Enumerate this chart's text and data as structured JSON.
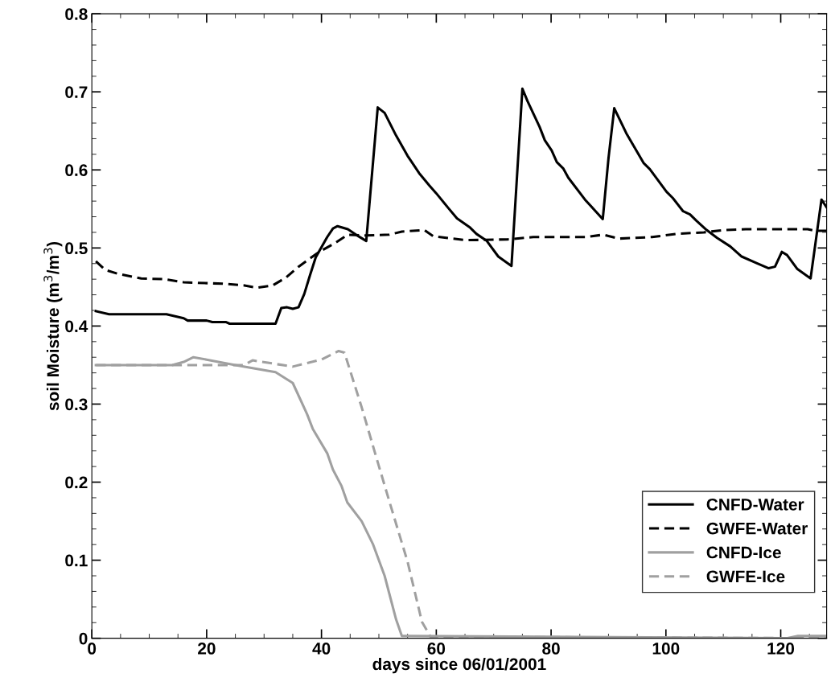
{
  "chart_data": {
    "type": "line",
    "xlabel": "days since 06/01/2001",
    "ylabel": "soil Moisture (m$^{3}$/m$^{3}$)",
    "xlim": [
      0,
      128
    ],
    "xticks": [
      0,
      20,
      40,
      60,
      80,
      100,
      120
    ],
    "ylim": [
      0,
      0.8
    ],
    "yticks": [
      0,
      0.1,
      0.2,
      0.3,
      0.4,
      0.5,
      0.6,
      0.7,
      0.8
    ],
    "grid": false,
    "legend": "bottom right",
    "marker": "none",
    "series": [
      {
        "name": "CNFD-Water",
        "color": "#000000",
        "line_style": "solid",
        "x": [
          0.7,
          3,
          13,
          16,
          16.7,
          20,
          21,
          23.4,
          24,
          32,
          33,
          34,
          35,
          36,
          37,
          38,
          39,
          41,
          42,
          42.8,
          44.6,
          46,
          47.8,
          49.8,
          51,
          53,
          55,
          57,
          58.8,
          60,
          62,
          63.6,
          65.9,
          67,
          68.8,
          70.8,
          73.1,
          75,
          75.9,
          78,
          78.9,
          80.1,
          81,
          82.1,
          83,
          85.9,
          89,
          90,
          91,
          93.1,
          96.1,
          97.2,
          100.1,
          101.2,
          103,
          104.2,
          105.3,
          107.1,
          108.9,
          111.2,
          113.2,
          115.7,
          117.9,
          119,
          120.2,
          121.1,
          122.9,
          125.2,
          127.1,
          128
        ],
        "values": [
          0.419,
          0.415,
          0.415,
          0.41,
          0.407,
          0.407,
          0.405,
          0.405,
          0.403,
          0.403,
          0.423,
          0.424,
          0.422,
          0.424,
          0.441,
          0.465,
          0.488,
          0.514,
          0.525,
          0.528,
          0.524,
          0.517,
          0.509,
          0.68,
          0.673,
          0.644,
          0.618,
          0.596,
          0.58,
          0.57,
          0.552,
          0.538,
          0.526,
          0.518,
          0.509,
          0.489,
          0.477,
          0.704,
          0.688,
          0.655,
          0.638,
          0.625,
          0.61,
          0.602,
          0.59,
          0.562,
          0.537,
          0.615,
          0.679,
          0.647,
          0.609,
          0.601,
          0.572,
          0.564,
          0.547,
          0.543,
          0.535,
          0.523,
          0.513,
          0.502,
          0.489,
          0.481,
          0.474,
          0.476,
          0.495,
          0.491,
          0.473,
          0.461,
          0.562,
          0.552
        ]
      },
      {
        "name": "GWFE-Water",
        "color": "#000000",
        "line_style": "dashed",
        "x": [
          0.7,
          2.3,
          4.5,
          8.6,
          12.6,
          16,
          23.4,
          26.6,
          28.8,
          31.5,
          33.8,
          36,
          39.6,
          42.3,
          44.6,
          47.7,
          51.8,
          54,
          57.9,
          59.5,
          65.2,
          72.4,
          76.9,
          85.9,
          89.1,
          91.8,
          97.6,
          101.7,
          106.6,
          110.2,
          113.9,
          124.7,
          126,
          128
        ],
        "values": [
          0.483,
          0.472,
          0.467,
          0.461,
          0.46,
          0.456,
          0.454,
          0.452,
          0.449,
          0.452,
          0.462,
          0.476,
          0.495,
          0.506,
          0.517,
          0.516,
          0.517,
          0.521,
          0.523,
          0.515,
          0.51,
          0.511,
          0.514,
          0.514,
          0.517,
          0.512,
          0.514,
          0.518,
          0.52,
          0.523,
          0.524,
          0.524,
          0.522,
          0.522
        ]
      },
      {
        "name": "CNFD-Ice",
        "color": "#a0a0a0",
        "line_style": "solid",
        "x": [
          0.7,
          14,
          16,
          17.7,
          20,
          25,
          32,
          35,
          37.5,
          38.5,
          41,
          42,
          43.5,
          44.5,
          47,
          49,
          51,
          53,
          54,
          121,
          123,
          128
        ],
        "values": [
          0.35,
          0.35,
          0.354,
          0.36,
          0.357,
          0.35,
          0.341,
          0.327,
          0.287,
          0.268,
          0.237,
          0.216,
          0.195,
          0.174,
          0.15,
          0.12,
          0.08,
          0.024,
          0.003,
          0,
          0.003,
          0.003
        ]
      },
      {
        "name": "GWFE-Ice",
        "color": "#a0a0a0",
        "line_style": "dashed",
        "x": [
          0.7,
          26.5,
          28,
          35,
          40,
          43,
          44,
          47,
          49.5,
          52,
          55,
          57.5,
          59,
          128
        ],
        "values": [
          0.35,
          0.35,
          0.356,
          0.348,
          0.357,
          0.368,
          0.366,
          0.296,
          0.233,
          0.171,
          0.098,
          0.021,
          0.002,
          0
        ]
      }
    ]
  }
}
